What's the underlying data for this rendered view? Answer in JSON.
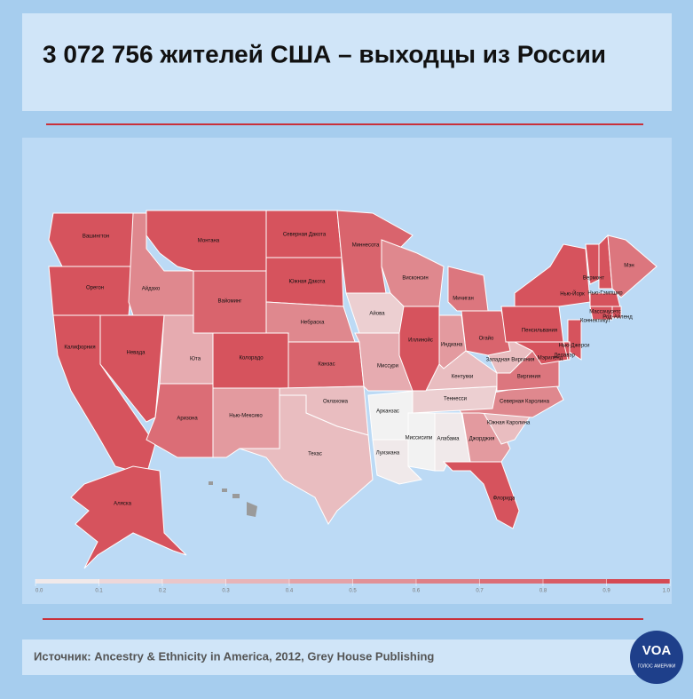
{
  "header": {
    "title": "3 072 756 жителей США – выходцы из России"
  },
  "map": {
    "type": "choropleth",
    "colors": {
      "low": "#f2f2f2",
      "high": "#d3414c",
      "no_data": "#9a9a9a"
    },
    "states": [
      {
        "name": "Вашингтон",
        "value": 0.9
      },
      {
        "name": "Орегон",
        "value": 0.9
      },
      {
        "name": "Калифорния",
        "value": 0.9
      },
      {
        "name": "Невада",
        "value": 0.9
      },
      {
        "name": "Айдахо",
        "value": 0.6
      },
      {
        "name": "Монтана",
        "value": 0.9
      },
      {
        "name": "Вайоминг",
        "value": 0.8
      },
      {
        "name": "Юта",
        "value": 0.4
      },
      {
        "name": "Колорадо",
        "value": 0.9
      },
      {
        "name": "Аризона",
        "value": 0.75
      },
      {
        "name": "Нью-Мексико",
        "value": 0.5
      },
      {
        "name": "Северная Дакота",
        "value": 0.9
      },
      {
        "name": "Южная Дакота",
        "value": 0.9
      },
      {
        "name": "Небраска",
        "value": 0.6
      },
      {
        "name": "Канзас",
        "value": 0.8
      },
      {
        "name": "Оклахома",
        "value": 0.3
      },
      {
        "name": "Техас",
        "value": 0.3
      },
      {
        "name": "Миннесота",
        "value": 0.8
      },
      {
        "name": "Айова",
        "value": 0.2
      },
      {
        "name": "Миссури",
        "value": 0.4
      },
      {
        "name": "Арканзас",
        "value": 0.0
      },
      {
        "name": "Луизиана",
        "value": 0.05
      },
      {
        "name": "Миссисипи",
        "value": 0.0
      },
      {
        "name": "Алабама",
        "value": 0.05
      },
      {
        "name": "Джорджия",
        "value": 0.5
      },
      {
        "name": "Флорида",
        "value": 0.9
      },
      {
        "name": "Южная Каролина",
        "value": 0.3
      },
      {
        "name": "Северная Каролина",
        "value": 0.6
      },
      {
        "name": "Теннесси",
        "value": 0.2
      },
      {
        "name": "Кентукки",
        "value": 0.3
      },
      {
        "name": "Виргиния",
        "value": 0.7
      },
      {
        "name": "Западная Виргиния",
        "value": 0.3
      },
      {
        "name": "Огайо",
        "value": 0.8
      },
      {
        "name": "Индиана",
        "value": 0.5
      },
      {
        "name": "Иллинойс",
        "value": 0.9
      },
      {
        "name": "Висконсин",
        "value": 0.6
      },
      {
        "name": "Мичиган",
        "value": 0.7
      },
      {
        "name": "Пенсильвания",
        "value": 0.9
      },
      {
        "name": "Нью-Йорк",
        "value": 0.9
      },
      {
        "name": "Вермонт",
        "value": 0.9
      },
      {
        "name": "Нью-Гэмпшир",
        "value": 0.9
      },
      {
        "name": "Мэн",
        "value": 0.7
      },
      {
        "name": "Массачусетс",
        "value": 0.9
      },
      {
        "name": "Род-Айленд",
        "value": 0.9
      },
      {
        "name": "Коннектикут",
        "value": 0.9
      },
      {
        "name": "Нью-Джерси",
        "value": 0.9
      },
      {
        "name": "Делавэр",
        "value": 0.9
      },
      {
        "name": "Мэриленд",
        "value": 0.9
      },
      {
        "name": "Аляска",
        "value": 0.9
      }
    ],
    "scale_ticks": [
      {
        "value": 0,
        "label": "0.0"
      },
      0.1,
      0.2,
      0.3,
      0.4,
      0.5,
      0.6,
      0.7,
      0.8,
      0.9,
      {
        "value": 1,
        "label": "1.0"
      }
    ]
  },
  "footer": {
    "source": "Источник: Ancestry & Ethnicity in America, 2012, Grey House Publishing"
  },
  "logo": {
    "text": "VOA",
    "subtitle": "ГОЛОС АМЕРИКИ"
  }
}
